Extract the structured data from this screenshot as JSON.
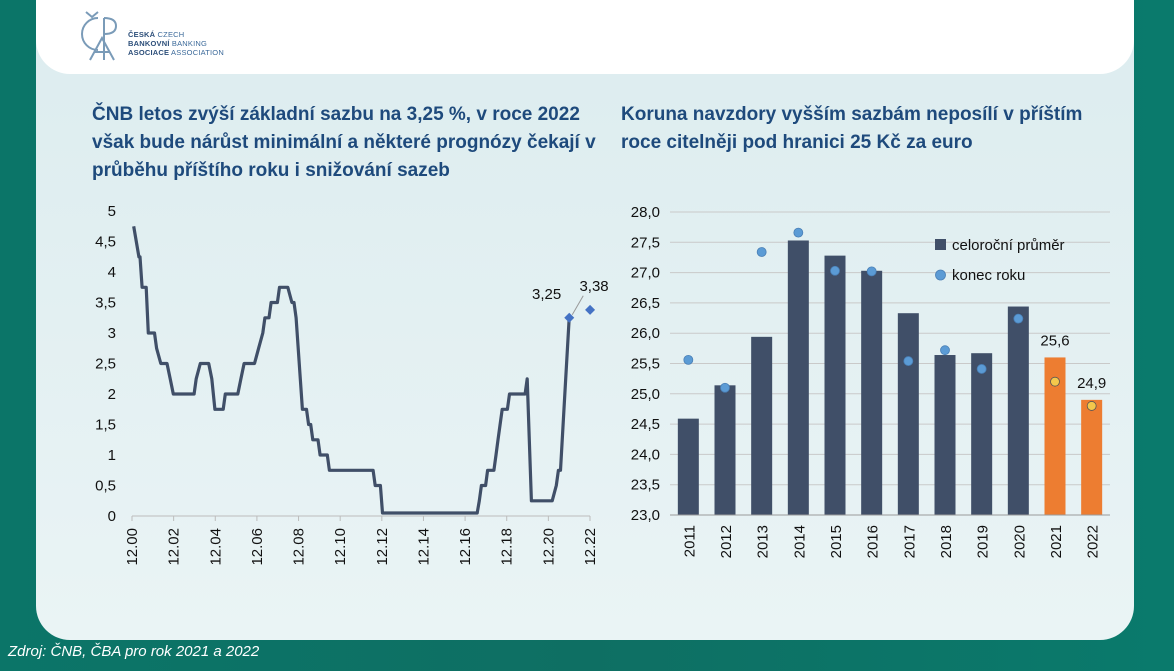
{
  "header": {
    "logo_letters": "ČBA",
    "logo_lines": [
      {
        "bold": "ČESKÁ",
        "rest": " CZECH"
      },
      {
        "bold": "BANKOVNÍ",
        "rest": " BANKING"
      },
      {
        "bold": "ASOCIACE",
        "rest": " ASSOCIATION"
      }
    ]
  },
  "source": "Zdroj: ČNB, ČBA pro rok 2021  a 2022",
  "colors": {
    "line": "#404f68",
    "bar": "#404f68",
    "bar_forecast": "#ed7d31",
    "dot": "#5b9bd5",
    "dot_forecast": "#f4c74b",
    "forecast_marker": "#4472c4"
  },
  "chart_data": [
    {
      "type": "line",
      "title": "ČNB letos zvýší základní sazbu na 3,25 %, v roce 2022 však bude nárůst minimální a některé prognózy čekají v průběhu příštího roku i snižování sazeb",
      "xlabel": "",
      "ylabel": "",
      "x_ticks": [
        "12.00",
        "12.02",
        "12.04",
        "12.06",
        "12.08",
        "12.10",
        "12.12",
        "12.14",
        "12.16",
        "12.18",
        "12.20",
        "12.22"
      ],
      "y_ticks": [
        "0",
        "0,5",
        "1",
        "1,5",
        "2",
        "2,5",
        "3",
        "3,5",
        "4",
        "4,5",
        "5"
      ],
      "xlim": [
        2000.917,
        2022.917
      ],
      "ylim": [
        0,
        5
      ],
      "series": [
        {
          "points": [
            [
              2001.0,
              4.75
            ],
            [
              2001.25,
              4.25
            ],
            [
              2001.3,
              4.25
            ],
            [
              2001.4,
              3.75
            ],
            [
              2001.6,
              3.75
            ],
            [
              2001.7,
              3.0
            ],
            [
              2002.0,
              3.0
            ],
            [
              2002.1,
              2.75
            ],
            [
              2002.3,
              2.5
            ],
            [
              2002.6,
              2.5
            ],
            [
              2002.75,
              2.25
            ],
            [
              2002.9,
              2.0
            ],
            [
              2003.9,
              2.0
            ],
            [
              2004.0,
              2.25
            ],
            [
              2004.2,
              2.5
            ],
            [
              2004.6,
              2.5
            ],
            [
              2004.75,
              2.25
            ],
            [
              2004.9,
              1.75
            ],
            [
              2005.3,
              1.75
            ],
            [
              2005.4,
              2.0
            ],
            [
              2006.0,
              2.0
            ],
            [
              2006.15,
              2.25
            ],
            [
              2006.3,
              2.5
            ],
            [
              2006.8,
              2.5
            ],
            [
              2007.0,
              2.75
            ],
            [
              2007.2,
              3.0
            ],
            [
              2007.3,
              3.25
            ],
            [
              2007.5,
              3.25
            ],
            [
              2007.6,
              3.5
            ],
            [
              2007.9,
              3.5
            ],
            [
              2008.0,
              3.75
            ],
            [
              2008.4,
              3.75
            ],
            [
              2008.6,
              3.5
            ],
            [
              2008.7,
              3.5
            ],
            [
              2008.8,
              3.25
            ],
            [
              2008.9,
              2.75
            ],
            [
              2009.0,
              2.25
            ],
            [
              2009.1,
              1.75
            ],
            [
              2009.3,
              1.75
            ],
            [
              2009.4,
              1.5
            ],
            [
              2009.5,
              1.5
            ],
            [
              2009.6,
              1.25
            ],
            [
              2009.85,
              1.25
            ],
            [
              2009.95,
              1.0
            ],
            [
              2010.3,
              1.0
            ],
            [
              2010.4,
              0.75
            ],
            [
              2012.5,
              0.75
            ],
            [
              2012.6,
              0.5
            ],
            [
              2012.85,
              0.5
            ],
            [
              2012.95,
              0.05
            ],
            [
              2017.5,
              0.05
            ],
            [
              2017.6,
              0.25
            ],
            [
              2017.7,
              0.5
            ],
            [
              2017.9,
              0.5
            ],
            [
              2018.0,
              0.75
            ],
            [
              2018.3,
              0.75
            ],
            [
              2018.4,
              1.0
            ],
            [
              2018.5,
              1.25
            ],
            [
              2018.6,
              1.5
            ],
            [
              2018.7,
              1.75
            ],
            [
              2018.95,
              1.75
            ],
            [
              2019.05,
              2.0
            ],
            [
              2019.8,
              2.0
            ],
            [
              2019.9,
              2.25
            ],
            [
              2020.1,
              0.25
            ],
            [
              2021.1,
              0.25
            ],
            [
              2021.3,
              0.5
            ],
            [
              2021.4,
              0.75
            ],
            [
              2021.5,
              0.75
            ],
            [
              2021.75,
              2.25
            ],
            [
              2021.92,
              3.25
            ]
          ]
        }
      ],
      "forecast_points": [
        {
          "x": 2021.92,
          "y": 3.25,
          "label": "3,25"
        },
        {
          "x": 2022.92,
          "y": 3.38,
          "label": "3,38"
        }
      ]
    },
    {
      "type": "bar",
      "title": "Koruna navzdory vyšším sazbám neposílí v příštím roce citelněji pod hranici 25 Kč za euro",
      "xlabel": "",
      "ylabel": "",
      "categories": [
        "2011",
        "2012",
        "2013",
        "2014",
        "2015",
        "2016",
        "2017",
        "2018",
        "2019",
        "2020",
        "2021",
        "2022"
      ],
      "y_ticks": [
        "23,0",
        "23,5",
        "24,0",
        "24,5",
        "25,0",
        "25,5",
        "26,0",
        "26,5",
        "27,0",
        "27,5",
        "28,0"
      ],
      "ylim": [
        23.0,
        28.0
      ],
      "series": [
        {
          "name": "celoroční průměr",
          "type": "bar",
          "values": [
            24.59,
            25.14,
            25.94,
            27.53,
            27.28,
            27.03,
            26.33,
            25.64,
            25.67,
            26.44,
            25.6,
            24.9
          ]
        },
        {
          "name": "konec roku",
          "type": "scatter",
          "values": [
            25.56,
            25.1,
            27.34,
            27.66,
            27.03,
            27.02,
            25.54,
            25.72,
            25.41,
            26.24,
            25.2,
            24.8
          ]
        }
      ],
      "forecast_from_index": 10,
      "data_labels": [
        {
          "index": 10,
          "text": "25,6"
        },
        {
          "index": 11,
          "text": "24,9"
        }
      ],
      "legend_position": "top-right"
    }
  ]
}
